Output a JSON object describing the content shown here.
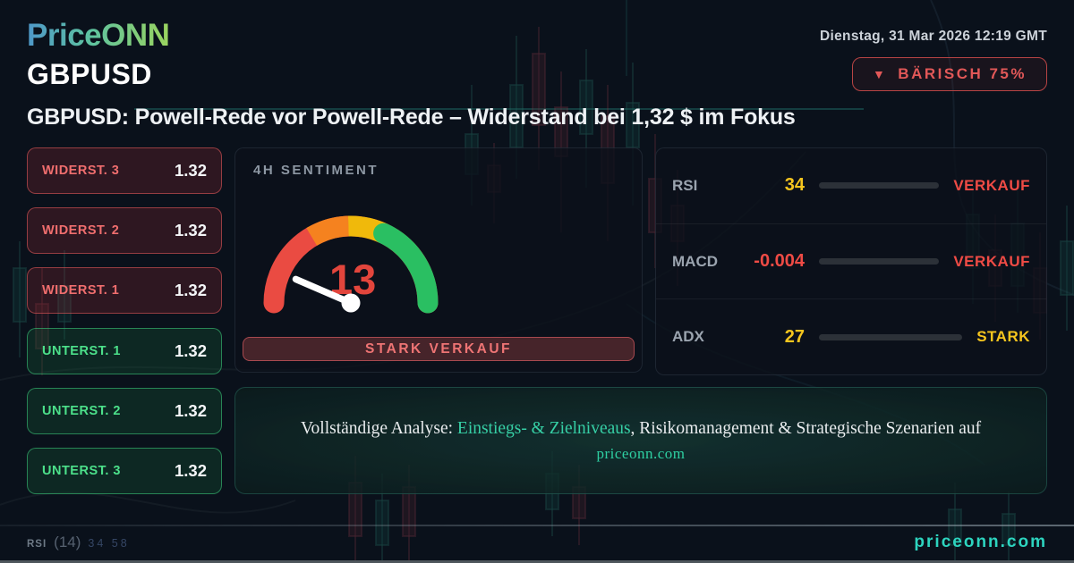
{
  "brand": {
    "logo_text": "PriceONN"
  },
  "header": {
    "datetime": "Dienstag, 31 Mar 2026 12:19 GMT",
    "symbol": "GBPUSD",
    "badge": {
      "icon": "▼",
      "label": "BÄRISCH 75%"
    }
  },
  "headline": "GBPUSD: Powell-Rede vor Powell-Rede – Widerstand bei 1,32 $ im Fokus",
  "levels": {
    "resistance": [
      {
        "label": "WIDERST. 3",
        "value": "1.32"
      },
      {
        "label": "WIDERST. 2",
        "value": "1.32"
      },
      {
        "label": "WIDERST. 1",
        "value": "1.32"
      }
    ],
    "support": [
      {
        "label": "UNTERST. 1",
        "value": "1.32"
      },
      {
        "label": "UNTERST. 2",
        "value": "1.32"
      },
      {
        "label": "UNTERST. 3",
        "value": "1.32"
      }
    ]
  },
  "sentiment": {
    "title": "4H SENTIMENT",
    "value": 13,
    "status": "STARK VERKAUF"
  },
  "indicators": [
    {
      "label": "RSI",
      "value": "34",
      "pct": 34,
      "status": "VERKAUF",
      "color": "#f6c51e",
      "status_color": "#ef4b45"
    },
    {
      "label": "MACD",
      "value": "-0.004",
      "pct": 3,
      "status": "VERKAUF",
      "color": "#ef4b45",
      "status_color": "#ef4b45"
    },
    {
      "label": "ADX",
      "value": "27",
      "pct": 27,
      "status": "STARK",
      "color": "#f6c51e",
      "status_color": "#f6c51e"
    }
  ],
  "cta": {
    "prefix": "Vollständige Analyse: ",
    "highlight": "Einstiegs- & Zielniveaus",
    "suffix": ", Risikomanagement & Strategische Szenarien auf",
    "domain": "priceonn.com"
  },
  "footer": {
    "indicator": "RSI",
    "period": "(14)",
    "faded_values": "34 58",
    "site": "priceonn.com"
  },
  "colors": {
    "accent_teal": "#2dd4bf",
    "bearish_red": "#e25858",
    "bullish_green": "#4ce08a",
    "warning_yellow": "#f6c51e",
    "gauge_red": "#ea4b42",
    "gauge_orange": "#f5821f",
    "gauge_yellow": "#f0b90b",
    "gauge_green": "#2abf62"
  }
}
